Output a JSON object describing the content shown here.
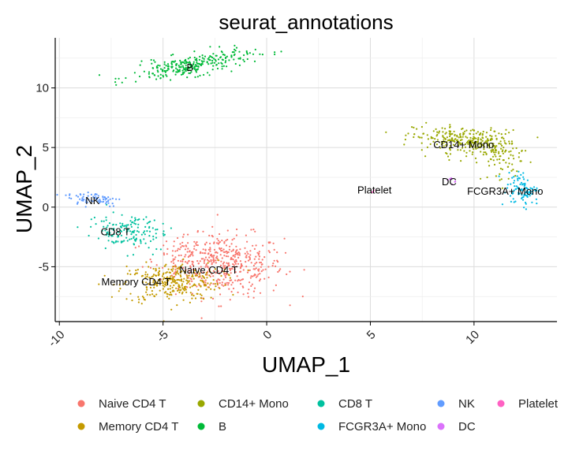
{
  "chart_data": {
    "type": "scatter",
    "title": "seurat_annotations",
    "xlabel": "UMAP_1",
    "ylabel": "UMAP_2",
    "xlim": [
      -10.2,
      14.0
    ],
    "ylim": [
      -9.6,
      14.2
    ],
    "x_ticks": [
      -10,
      -5,
      0,
      5,
      10
    ],
    "x_tick_labels": [
      "-10",
      "-5",
      "0",
      "5",
      "10"
    ],
    "y_ticks": [
      -5,
      0,
      5,
      10
    ],
    "y_tick_labels": [
      "-5",
      "0",
      "5",
      "10"
    ],
    "grid": true,
    "legend_position": "bottom",
    "series": [
      {
        "name": "Naive CD4 T",
        "color": "#F8766D",
        "label": "Naive CD4 T",
        "label_xy": [
          -2.8,
          -5.3
        ]
      },
      {
        "name": "Memory CD4 T",
        "color": "#C49A00",
        "label": "Memory CD4 T",
        "label_xy": [
          -6.3,
          -6.3
        ]
      },
      {
        "name": "CD14+ Mono",
        "color": "#99A800",
        "label": "CD14+ Mono",
        "label_xy": [
          9.5,
          5.2
        ]
      },
      {
        "name": "B",
        "color": "#00BA38",
        "label": "B",
        "label_xy": [
          -3.7,
          11.7
        ]
      },
      {
        "name": "CD8 T",
        "color": "#00C19F",
        "label": "CD8 T",
        "label_xy": [
          -7.3,
          -2.1
        ]
      },
      {
        "name": "FCGR3A+ Mono",
        "color": "#00B9E3",
        "label": "FCGR3A+ Mono",
        "label_xy": [
          11.5,
          1.3
        ]
      },
      {
        "name": "NK",
        "color": "#619CFF",
        "label": "NK",
        "label_xy": [
          -8.4,
          0.5
        ]
      },
      {
        "name": "DC",
        "color": "#DB72FB",
        "label": "DC",
        "label_xy": [
          8.8,
          2.1
        ]
      },
      {
        "name": "Platelet",
        "color": "#FF61C3",
        "label": "Platelet",
        "label_xy": [
          5.2,
          1.4
        ]
      }
    ]
  }
}
